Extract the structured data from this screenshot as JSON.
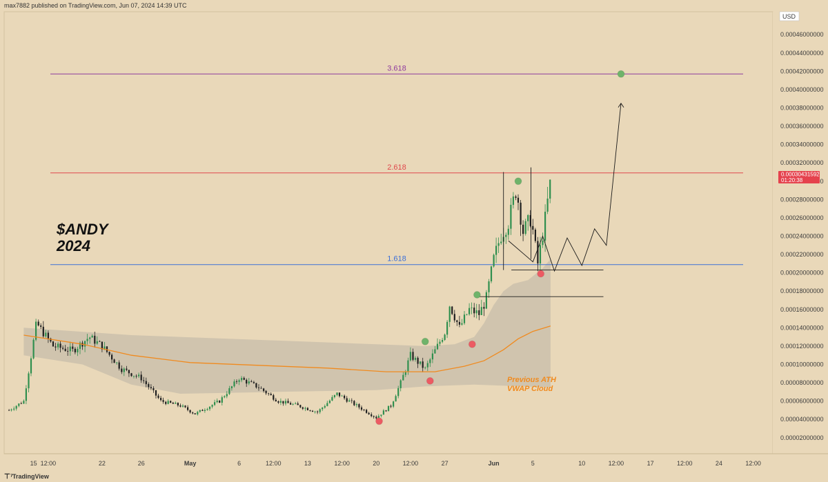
{
  "header": {
    "published_by": "max7882 published on TradingView.com, Jun 07, 2024 14:39 UTC"
  },
  "footer": {
    "brand": "TradingView"
  },
  "chart_data": {
    "type": "candlestick",
    "annotation_title_line1": "$ANDY",
    "annotation_title_line2": "2024",
    "currency": "USD",
    "y_ticks": [
      "0.00046000000",
      "0.00044000000",
      "0.00042000000",
      "0.00040000000",
      "0.00038000000",
      "0.00036000000",
      "0.00034000000",
      "0.00032000000",
      "0.00030000000",
      "0.00028000000",
      "0.00026000000",
      "0.00024000000",
      "0.00022000000",
      "0.00020000000",
      "0.00018000000",
      "0.00016000000",
      "0.00014000000",
      "0.00012000000",
      "0.00010000000",
      "0.00008000000",
      "0.00006000000",
      "0.00004000000",
      "0.00002000000"
    ],
    "ylim": [
      2.5e-06,
      0.000485
    ],
    "x_ticks": [
      {
        "label": "15",
        "day": 15
      },
      {
        "label": "12:00",
        "day": 16.5
      },
      {
        "label": "22",
        "day": 22
      },
      {
        "label": "26",
        "day": 26
      },
      {
        "label": "May",
        "day": 31
      },
      {
        "label": "6",
        "day": 36
      },
      {
        "label": "12:00",
        "day": 39.5
      },
      {
        "label": "13",
        "day": 43
      },
      {
        "label": "12:00",
        "day": 46.5
      },
      {
        "label": "20",
        "day": 50
      },
      {
        "label": "12:00",
        "day": 53.5
      },
      {
        "label": "27",
        "day": 57
      },
      {
        "label": "Jun",
        "day": 62
      },
      {
        "label": "5",
        "day": 66
      },
      {
        "label": "10",
        "day": 71
      },
      {
        "label": "12:00",
        "day": 74.5
      },
      {
        "label": "17",
        "day": 78
      },
      {
        "label": "12:00",
        "day": 81.5
      },
      {
        "label": "24",
        "day": 85
      },
      {
        "label": "12:00",
        "day": 88.5
      }
    ],
    "current_price": {
      "value": 0.00030431592,
      "label": "0.00030431592",
      "countdown": "01:20:38"
    },
    "fib_levels": [
      {
        "label": "3.618",
        "value": 0.000417,
        "color": "#8e3a9e"
      },
      {
        "label": "2.618",
        "value": 0.000309,
        "color": "#e0474c"
      },
      {
        "label": "1.618",
        "value": 0.000209,
        "color": "#3b6fd8"
      }
    ],
    "vwap_cloud_label_line1": "Previous ATH",
    "vwap_cloud_label_line2": "VWAP Cloud",
    "vwap_line": [
      {
        "day": 14,
        "value": 0.000132
      },
      {
        "day": 20,
        "value": 0.000122
      },
      {
        "day": 25,
        "value": 0.00011
      },
      {
        "day": 31,
        "value": 0.000102
      },
      {
        "day": 38,
        "value": 9.9e-05
      },
      {
        "day": 45,
        "value": 9.6e-05
      },
      {
        "day": 51,
        "value": 9.2e-05
      },
      {
        "day": 56,
        "value": 9.2e-05
      },
      {
        "day": 59,
        "value": 9.8e-05
      },
      {
        "day": 61,
        "value": 0.000104
      },
      {
        "day": 63,
        "value": 0.000116
      },
      {
        "day": 64.5,
        "value": 0.000128
      },
      {
        "day": 66,
        "value": 0.000136
      },
      {
        "day": 67.8,
        "value": 0.000142
      }
    ],
    "cloud_upper": [
      {
        "day": 14,
        "value": 0.00014
      },
      {
        "day": 25,
        "value": 0.000132
      },
      {
        "day": 40,
        "value": 0.000126
      },
      {
        "day": 55,
        "value": 0.00012
      },
      {
        "day": 58,
        "value": 0.000122
      },
      {
        "day": 60,
        "value": 0.00013
      },
      {
        "day": 61,
        "value": 0.000145
      },
      {
        "day": 62,
        "value": 0.000165
      },
      {
        "day": 63,
        "value": 0.00018
      },
      {
        "day": 64,
        "value": 0.000188
      },
      {
        "day": 65.5,
        "value": 0.000192
      },
      {
        "day": 67,
        "value": 0.000205
      },
      {
        "day": 67.8,
        "value": 0.000215
      }
    ],
    "cloud_lower": [
      {
        "day": 14,
        "value": 0.00011
      },
      {
        "day": 20,
        "value": 0.0001
      },
      {
        "day": 25,
        "value": 7.8e-05
      },
      {
        "day": 30,
        "value": 6.8e-05
      },
      {
        "day": 40,
        "value": 7e-05
      },
      {
        "day": 50,
        "value": 7.2e-05
      },
      {
        "day": 55,
        "value": 7.6e-05
      },
      {
        "day": 60,
        "value": 7.8e-05
      },
      {
        "day": 65,
        "value": 7.6e-05
      },
      {
        "day": 67.8,
        "value": 7.5e-05
      }
    ],
    "price_path": [
      {
        "day": 12.5,
        "value": 5e-05
      },
      {
        "day": 14,
        "value": 6e-05
      },
      {
        "day": 15.3,
        "value": 0.000145
      },
      {
        "day": 17,
        "value": 0.00012
      },
      {
        "day": 19,
        "value": 0.000115
      },
      {
        "day": 20.7,
        "value": 0.00013
      },
      {
        "day": 22,
        "value": 0.00012
      },
      {
        "day": 24,
        "value": 9.5e-05
      },
      {
        "day": 26,
        "value": 8.5e-05
      },
      {
        "day": 28,
        "value": 6e-05
      },
      {
        "day": 30,
        "value": 5.5e-05
      },
      {
        "day": 31.5,
        "value": 4.6e-05
      },
      {
        "day": 34,
        "value": 6e-05
      },
      {
        "day": 36,
        "value": 8.5e-05
      },
      {
        "day": 38,
        "value": 7.5e-05
      },
      {
        "day": 40,
        "value": 6e-05
      },
      {
        "day": 42,
        "value": 5.5e-05
      },
      {
        "day": 44,
        "value": 4.8e-05
      },
      {
        "day": 46,
        "value": 6.8e-05
      },
      {
        "day": 48,
        "value": 5.5e-05
      },
      {
        "day": 50,
        "value": 4.2e-05
      },
      {
        "day": 51.5,
        "value": 5.5e-05
      },
      {
        "day": 52.5,
        "value": 8e-05
      },
      {
        "day": 53.5,
        "value": 0.00011
      },
      {
        "day": 55,
        "value": 9.5e-05
      },
      {
        "day": 56,
        "value": 0.000115
      },
      {
        "day": 57,
        "value": 0.000135
      },
      {
        "day": 57.5,
        "value": 0.000165
      },
      {
        "day": 58.5,
        "value": 0.00014
      },
      {
        "day": 59.5,
        "value": 0.00016
      },
      {
        "day": 60.5,
        "value": 0.000155
      },
      {
        "day": 61.2,
        "value": 0.00017
      },
      {
        "day": 62,
        "value": 0.000215
      },
      {
        "day": 62.7,
        "value": 0.00024
      },
      {
        "day": 63.5,
        "value": 0.000255
      },
      {
        "day": 64.3,
        "value": 0.000292
      },
      {
        "day": 65,
        "value": 0.000245
      },
      {
        "day": 65.8,
        "value": 0.00026
      },
      {
        "day": 66.5,
        "value": 0.00021
      },
      {
        "day": 67.2,
        "value": 0.000255
      },
      {
        "day": 67.8,
        "value": 0.0003
      }
    ],
    "projection_path": [
      {
        "day": 63.5,
        "value": 0.000235
      },
      {
        "day": 66,
        "value": 0.000212
      },
      {
        "day": 67,
        "value": 0.00024
      },
      {
        "day": 68.2,
        "value": 0.000202
      },
      {
        "day": 69.5,
        "value": 0.000238
      },
      {
        "day": 71,
        "value": 0.000208
      },
      {
        "day": 72.3,
        "value": 0.000248
      },
      {
        "day": 73.5,
        "value": 0.00023
      },
      {
        "day": 75,
        "value": 0.000385
      }
    ],
    "horizontal_segments": [
      {
        "day_start": 63.8,
        "day_end": 73.2,
        "value": 0.000203
      },
      {
        "day_start": 60.2,
        "day_end": 73.2,
        "value": 0.000174
      }
    ],
    "range_box": {
      "day_start": 63.0,
      "day_end": 63.8,
      "low": 0.000203,
      "high": 0.00031
    },
    "range_box2": {
      "day_start": 65.8,
      "day_end": 66.0,
      "low": 0.000215,
      "high": 0.000315
    },
    "swing_markers": [
      {
        "day": 50.3,
        "value": 3.8e-05,
        "type": "low",
        "color": "#ec5b63"
      },
      {
        "day": 55.5,
        "value": 8.2e-05,
        "type": "low",
        "color": "#ec5b63"
      },
      {
        "day": 55.0,
        "value": 0.000125,
        "type": "high",
        "color": "#6fb36a"
      },
      {
        "day": 59.8,
        "value": 0.000122,
        "type": "low",
        "color": "#ec5b63"
      },
      {
        "day": 60.3,
        "value": 0.000176,
        "type": "high",
        "color": "#6fb36a"
      },
      {
        "day": 64.5,
        "value": 0.0003,
        "type": "high",
        "color": "#6fb36a"
      },
      {
        "day": 66.8,
        "value": 0.000199,
        "type": "low",
        "color": "#ec5b63"
      },
      {
        "day": 75.0,
        "value": 0.000417,
        "type": "target",
        "color": "#6fb36a"
      }
    ],
    "colors": {
      "up": "#2f8f4e",
      "down": "#1f1f1f",
      "vwap": "#f08a1e",
      "cloud": "rgba(175,170,160,0.42)",
      "projection": "#1a1a1a"
    }
  }
}
